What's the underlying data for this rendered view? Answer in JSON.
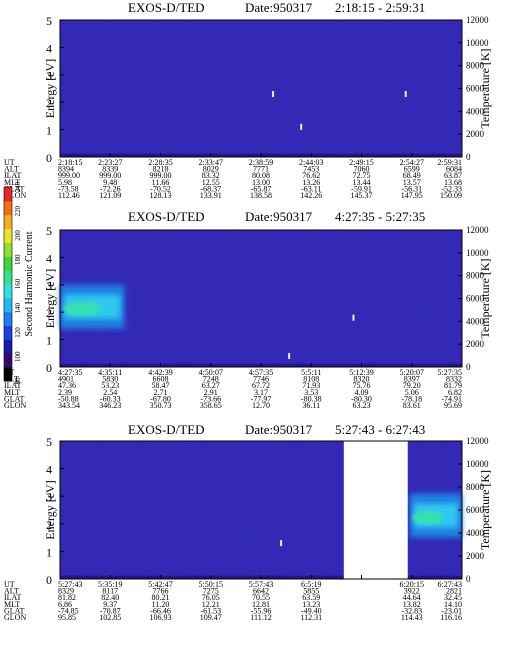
{
  "chart_data": [
    {
      "type": "heatmap",
      "title": "EXOS-D/TED",
      "date_text": "Date:950317",
      "time_range": "2:18:15 - 2:59:31",
      "ylabel": "Energy [eV]",
      "ylim": [
        0,
        5
      ],
      "yticks": [
        "0",
        "1",
        "2",
        "3",
        "4",
        "5"
      ],
      "y2label": "Temperature [K]",
      "y2lim": [
        0,
        12000
      ],
      "y2ticks": [
        "0",
        "2000",
        "4000",
        "6000",
        "8000",
        "10000",
        "12000"
      ],
      "row_labels": [
        "UT",
        "ALT",
        "ILAT",
        "MLT",
        "GLAT",
        "GLON"
      ],
      "columns": [
        [
          "2:18:15",
          "8394",
          "999.00",
          "5.98",
          "-73.58",
          "112.46"
        ],
        [
          "2:23:27",
          "8339",
          "999.00",
          "9.48",
          "-72.26",
          "121.09"
        ],
        [
          "2:28:35",
          "8218",
          "999.00",
          "11.66",
          "-70.52",
          "128.13"
        ],
        [
          "2:33:47",
          "8029",
          "83.32",
          "12.55",
          "-68.37",
          "133.91"
        ],
        [
          "2:38:59",
          "7771",
          "80.08",
          "13.00",
          "-65.87",
          "138.58"
        ],
        [
          "2:44:03",
          "7453",
          "76.62",
          "13.26",
          "-63.11",
          "142.26"
        ],
        [
          "2:49:15",
          "7060",
          "72.75",
          "13.44",
          "-59.91",
          "145.37"
        ],
        [
          "2:54:27",
          "6599",
          "68.49",
          "13.57",
          "-56.31",
          "147.95"
        ],
        [
          "2:59:31",
          "6084",
          "63.87",
          "13.68",
          "-52.33",
          "150.09"
        ]
      ],
      "data_gaps_fraction": [],
      "enhancement_region": null,
      "isolated_points": [
        [
          0.53,
          2.3
        ],
        [
          0.86,
          2.3
        ],
        [
          0.6,
          1.1
        ]
      ]
    },
    {
      "type": "heatmap",
      "title": "EXOS-D/TED",
      "date_text": "Date:950317",
      "time_range": "4:27:35 - 5:27:35",
      "ylabel": "Energy [eV]",
      "ylim": [
        0,
        5
      ],
      "yticks": [
        "0",
        "1",
        "2",
        "3",
        "4",
        "5"
      ],
      "y2label": "Temperature [K]",
      "y2lim": [
        0,
        12000
      ],
      "y2ticks": [
        "0",
        "2000",
        "4000",
        "6000",
        "8000",
        "10000",
        "12000"
      ],
      "row_labels": [
        "UT",
        "ALT",
        "ILAT",
        "MLT",
        "GLAT",
        "GLON"
      ],
      "columns": [
        [
          "4:27:35",
          "4901",
          "47.36",
          "2.39",
          "-50.88",
          "343.54"
        ],
        [
          "4:35:11",
          "5830",
          "53.23",
          "2.54",
          "-60.33",
          "346.23"
        ],
        [
          "4:42:39",
          "6608",
          "58.47",
          "2.71",
          "-67.80",
          "350.73"
        ],
        [
          "4:50:07",
          "7248",
          "63.27",
          "2.91",
          "-73.66",
          "358.65"
        ],
        [
          "4:57:35",
          "7746",
          "67.72",
          "3.17",
          "-77.97",
          "12.70"
        ],
        [
          "5:5:11",
          "8108",
          "71.93",
          "3.53",
          "-80.38",
          "36.11"
        ],
        [
          "5:12:39",
          "8320",
          "75.76",
          "4.09",
          "-80.30",
          "63.23"
        ],
        [
          "5:20:07",
          "8397",
          "79.20",
          "5.06",
          "-78.18",
          "83.61"
        ],
        [
          "5:27:35",
          "8332",
          "81.79",
          "6.82",
          "-74.91",
          "95.69"
        ]
      ],
      "data_gaps_fraction": [],
      "enhancement_region": {
        "x_from": 0.0,
        "x_to": 0.16,
        "energy_center": 2.2,
        "label": ""
      },
      "isolated_points": [
        [
          0.73,
          1.8
        ],
        [
          0.57,
          0.4
        ]
      ]
    },
    {
      "type": "heatmap",
      "title": "EXOS-D/TED",
      "date_text": "Date:950317",
      "time_range": "5:27:43 - 6:27:43",
      "ylabel": "Energy [eV]",
      "ylim": [
        0,
        5
      ],
      "yticks": [
        "0",
        "1",
        "2",
        "3",
        "4",
        "5"
      ],
      "y2label": "Temperature [K]",
      "y2lim": [
        0,
        12000
      ],
      "y2ticks": [
        "0",
        "2000",
        "4000",
        "6000",
        "8000",
        "10000",
        "12000"
      ],
      "row_labels": [
        "UT",
        "ALT",
        "ILAT",
        "MLT",
        "GLAT",
        "GLON"
      ],
      "columns": [
        [
          "5:27:43",
          "8329",
          "81.82",
          "6.86",
          "-74.85",
          "95.85"
        ],
        [
          "5:35:19",
          "8117",
          "82.40",
          "9.37",
          "-70.87",
          "102.85"
        ],
        [
          "5:42:47",
          "7766",
          "80.21",
          "11.20",
          "-66.46",
          "106.93"
        ],
        [
          "5:50:15",
          "7275",
          "76.05",
          "12.21",
          "-61.53",
          "109.47"
        ],
        [
          "5:57:43",
          "6642",
          "70.55",
          "12.81",
          "-55.96",
          "111.12"
        ],
        [
          "6:5:19",
          "5855",
          "63.59",
          "13.23",
          "-49.40",
          "112.31"
        ],
        [
          "",
          "",
          "",
          "",
          "",
          ""
        ],
        [
          "6:20:15",
          "3922",
          "44.64",
          "13.82",
          "-32.83",
          "114.43"
        ],
        [
          "6:27:43",
          "2821",
          "32.45",
          "14.10",
          "-23.01",
          "116.16"
        ]
      ],
      "data_gaps_fraction": [
        [
          0.706,
          0.865
        ]
      ],
      "enhancement_region": {
        "x_from": 0.87,
        "x_to": 1.0,
        "energy_center": 2.3,
        "label": ""
      },
      "isolated_points": [
        [
          0.55,
          1.3
        ]
      ]
    }
  ],
  "colorbar": {
    "label": "Second Harmonic Current",
    "ticks": [
      "80",
      "100",
      "120",
      "140",
      "160",
      "180",
      "200",
      "220",
      "240"
    ],
    "colors": [
      "#000000",
      "#3a0a6a",
      "#1a1aa8",
      "#1d3fe0",
      "#1e7df0",
      "#23b8f5",
      "#33e0e0",
      "#35e090",
      "#38d838",
      "#8ee030",
      "#e8e828",
      "#f0b020",
      "#f07018",
      "#e82828"
    ]
  }
}
